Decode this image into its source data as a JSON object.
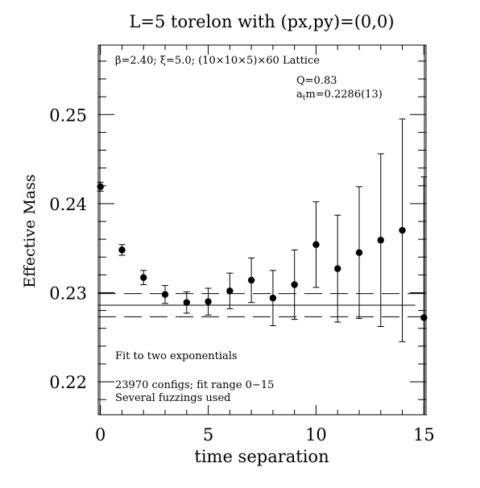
{
  "chart_data": {
    "type": "scatter",
    "title": "L=5 torelon with (px,py)=(0,0)",
    "subtitle": "β=2.40; ξ=5.0; (10×10×5)×60 Lattice",
    "xlabel": "time separation",
    "ylabel": "Effective Mass",
    "xlim": [
      -0.1,
      15.1
    ],
    "ylim": [
      0.2163,
      0.2578
    ],
    "x_ticks": [
      0,
      5,
      10,
      15
    ],
    "y_ticks": [
      0.22,
      0.23,
      0.24,
      0.25
    ],
    "x_tick_labels": [
      "0",
      "5",
      "10",
      "15"
    ],
    "y_tick_labels": [
      "0.22",
      "0.23",
      "0.24",
      "0.25"
    ],
    "grid": false,
    "annotations": {
      "q_value": "Q=0.83",
      "mass_prefix": "a",
      "mass_sub": "t",
      "mass_suffix": "m=0.2286(13)",
      "fit_note": "Fit to two exponentials",
      "configs_note": "23970 configs; fit range 0−15",
      "fuzzing_note": "Several fuzzings used"
    },
    "fit": {
      "center": 0.2286,
      "error": 0.0013,
      "x_range": [
        0,
        14.6
      ]
    },
    "points": [
      {
        "x": 0,
        "y": 0.2419,
        "err": 0.0005
      },
      {
        "x": 1,
        "y": 0.2348,
        "err": 0.0006
      },
      {
        "x": 2,
        "y": 0.2317,
        "err": 0.0008
      },
      {
        "x": 3,
        "y": 0.2298,
        "err": 0.001
      },
      {
        "x": 4,
        "y": 0.2289,
        "err": 0.0012
      },
      {
        "x": 5,
        "y": 0.229,
        "err": 0.0015
      },
      {
        "x": 6,
        "y": 0.2302,
        "err": 0.002
      },
      {
        "x": 7,
        "y": 0.2314,
        "err": 0.0025
      },
      {
        "x": 8,
        "y": 0.2294,
        "err": 0.0031
      },
      {
        "x": 9,
        "y": 0.2309,
        "err": 0.0039
      },
      {
        "x": 10,
        "y": 0.2354,
        "err": 0.0048
      },
      {
        "x": 11,
        "y": 0.2327,
        "err": 0.006
      },
      {
        "x": 12,
        "y": 0.2345,
        "err": 0.0074
      },
      {
        "x": 13,
        "y": 0.2359,
        "err": 0.0097
      },
      {
        "x": 14,
        "y": 0.237,
        "err": 0.0125
      },
      {
        "x": 15,
        "y": 0.2272,
        "err": 0.0158
      }
    ]
  }
}
